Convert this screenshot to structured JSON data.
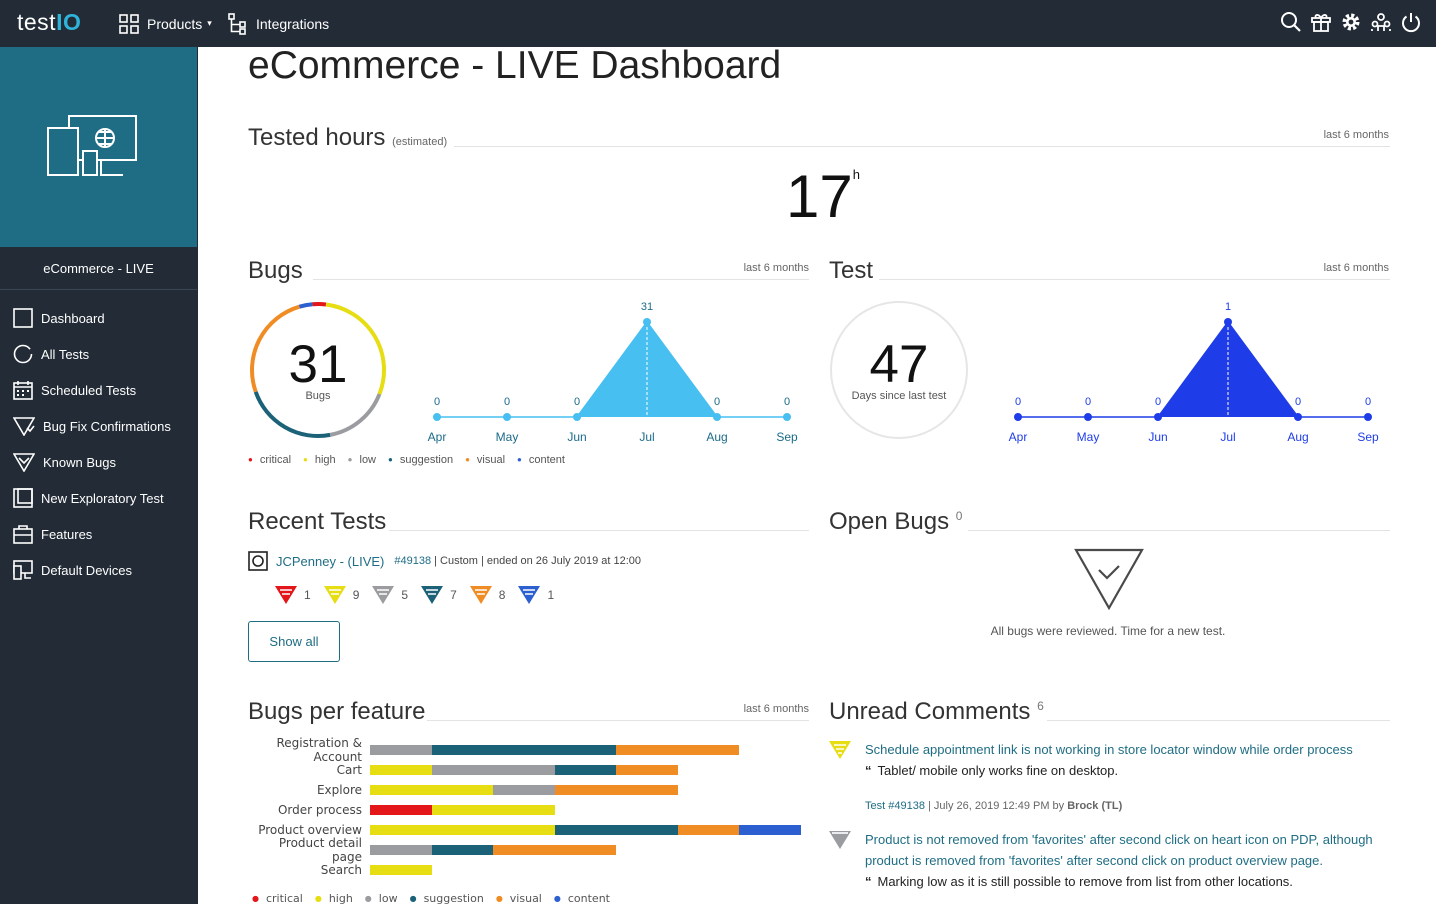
{
  "app": {
    "logo_text": "test",
    "logo_accent": "IO",
    "brand_color": "#1f6d84"
  },
  "topnav": {
    "products_label": "Products",
    "integrations_label": "Integrations"
  },
  "topicons": [
    "search-icon",
    "gift-icon",
    "gear-icon",
    "users-icon",
    "power-icon"
  ],
  "sidebar": {
    "project_name": "eCommerce - LIVE",
    "items": [
      {
        "label": "Dashboard",
        "icon": "square-icon"
      },
      {
        "label": "All Tests",
        "icon": "circle-icon"
      },
      {
        "label": "Scheduled Tests",
        "icon": "calendar-icon"
      },
      {
        "label": "Bug Fix Confirmations",
        "icon": "bug-fix-icon"
      },
      {
        "label": "Known Bugs",
        "icon": "known-bug-icon"
      },
      {
        "label": "New Exploratory Test",
        "icon": "new-test-icon"
      },
      {
        "label": "Features",
        "icon": "features-icon"
      },
      {
        "label": "Default Devices",
        "icon": "devices-icon"
      }
    ]
  },
  "page": {
    "title": "eCommerce - LIVE Dashboard"
  },
  "tested_hours": {
    "title": "Tested hours",
    "note": "(estimated)",
    "period": "last 6 months",
    "value": "17",
    "unit": "h"
  },
  "bugs": {
    "title": "Bugs",
    "period": "last 6 months",
    "total": "31",
    "total_label": "Bugs",
    "legend": [
      {
        "label": "critical",
        "color": "#e3161a"
      },
      {
        "label": "high",
        "color": "#e6dd12"
      },
      {
        "label": "low",
        "color": "#9a9ca0"
      },
      {
        "label": "suggestion",
        "color": "#1b6279"
      },
      {
        "label": "visual",
        "color": "#f08c24"
      },
      {
        "label": "content",
        "color": "#2c5fcf"
      }
    ],
    "donut": [
      {
        "name": "high",
        "value": 9,
        "color": "#e6dd12"
      },
      {
        "name": "low",
        "value": 5,
        "color": "#9a9ca0"
      },
      {
        "name": "suggestion",
        "value": 7,
        "color": "#1b6279"
      },
      {
        "name": "visual",
        "value": 8,
        "color": "#f08c24"
      },
      {
        "name": "content",
        "value": 1,
        "color": "#2c5fcf"
      },
      {
        "name": "critical",
        "value": 1,
        "color": "#e3161a"
      }
    ]
  },
  "test": {
    "title": "Test",
    "period": "last 6 months",
    "days": "47",
    "days_label": "Days since last test"
  },
  "chart_data": [
    {
      "type": "area",
      "title": "Bugs",
      "categories": [
        "Apr",
        "May",
        "Jun",
        "Jul",
        "Aug",
        "Sep"
      ],
      "values": [
        0,
        0,
        0,
        31,
        0,
        0
      ],
      "color": "#47bff0"
    },
    {
      "type": "area",
      "title": "Test",
      "categories": [
        "Apr",
        "May",
        "Jun",
        "Jul",
        "Aug",
        "Sep"
      ],
      "values": [
        0,
        0,
        0,
        1,
        0,
        0
      ],
      "color": "#1e3de8"
    },
    {
      "type": "bar",
      "title": "Bugs per feature",
      "orientation": "horizontal",
      "stacked": true,
      "categories": [
        "Registration & Account",
        "Cart",
        "Explore",
        "Order process",
        "Product overview",
        "Product detail page",
        "Search"
      ],
      "series": [
        {
          "name": "critical",
          "color": "#e3161a",
          "values": [
            0,
            0,
            0,
            1,
            0,
            0,
            0
          ]
        },
        {
          "name": "high",
          "color": "#e6dd12",
          "values": [
            0,
            1,
            2,
            2,
            3,
            0,
            1
          ]
        },
        {
          "name": "low",
          "color": "#9a9ca0",
          "values": [
            1,
            2,
            1,
            0,
            0,
            1,
            0
          ]
        },
        {
          "name": "suggestion",
          "color": "#1b6279",
          "values": [
            3,
            1,
            0,
            0,
            2,
            1,
            0
          ]
        },
        {
          "name": "visual",
          "color": "#f08c24",
          "values": [
            2,
            1,
            2,
            0,
            1,
            2,
            0
          ]
        },
        {
          "name": "content",
          "color": "#2c5fcf",
          "values": [
            0,
            0,
            0,
            0,
            1,
            0,
            0
          ]
        }
      ]
    }
  ],
  "recent_tests": {
    "title": "Recent Tests",
    "test_name": "JCPenney - (LIVE)",
    "test_id": "#49138",
    "test_meta": "| Custom | ended on 26 July 2019 at 12:00",
    "counts": [
      {
        "severity": "critical",
        "count": "1",
        "color": "#e3161a"
      },
      {
        "severity": "high",
        "count": "9",
        "color": "#e6dd12"
      },
      {
        "severity": "low",
        "count": "5",
        "color": "#9a9ca0"
      },
      {
        "severity": "suggestion",
        "count": "7",
        "color": "#1b6279"
      },
      {
        "severity": "visual",
        "count": "8",
        "color": "#f08c24"
      },
      {
        "severity": "content",
        "count": "1",
        "color": "#2c5fcf"
      }
    ],
    "show_all": "Show all"
  },
  "open_bugs": {
    "title": "Open Bugs",
    "count": "0",
    "message": "All bugs were reviewed. Time for a new test."
  },
  "bugs_per_feature": {
    "title": "Bugs per feature",
    "period": "last 6 months"
  },
  "unread_comments": {
    "title": "Unread Comments",
    "count": "6",
    "items": [
      {
        "title": "Schedule appointment link is not working in store locator window while order process",
        "body": "Tablet/ mobile only works fine on desktop.",
        "test": "Test #49138",
        "meta": "| July 26, 2019 12:49 PM by",
        "author": "Brock (TL)",
        "severity_color": "#e6dd12"
      },
      {
        "title": "Product is not removed from 'favorites' after second click on heart icon on PDP, although product is removed from 'favorites' after second click on product overview page.",
        "body": "Marking low as it is still possible to remove from list from other locations.",
        "severity_color": "#9a9ca0"
      }
    ]
  }
}
